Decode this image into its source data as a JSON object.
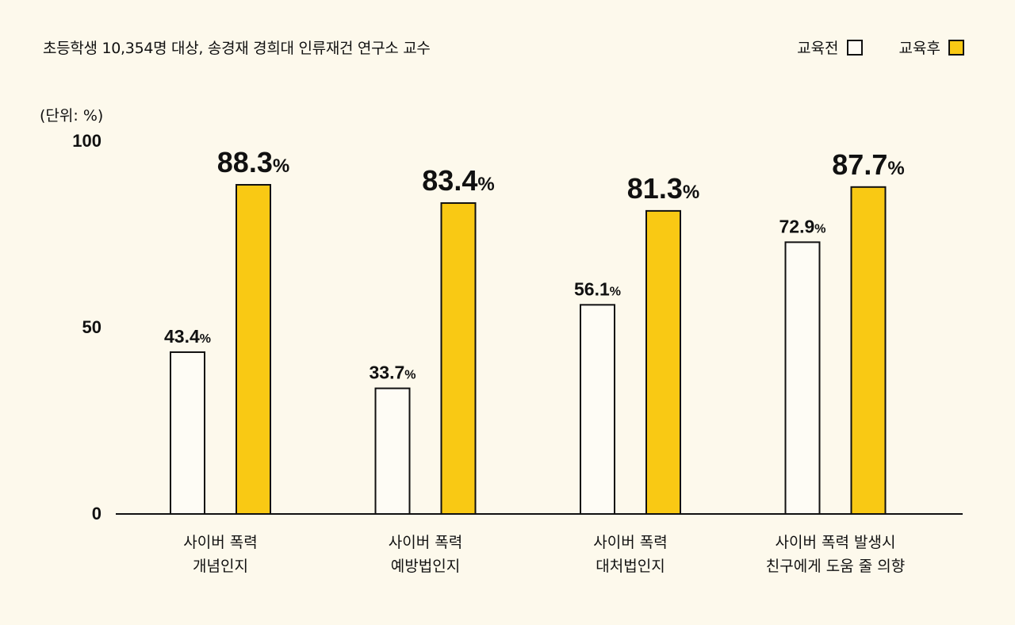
{
  "subtitle": "초등학생 10,354명 대상, 송경재 경희대 인류재건 연구소 교수",
  "unit_label": "(단위: %)",
  "colors": {
    "before": "#fefcf5",
    "after": "#f9c914",
    "stroke": "#111111",
    "background": "#fdf9ec"
  },
  "chart_data": {
    "type": "bar",
    "categories": [
      [
        "사이버 폭력",
        "개념인지"
      ],
      [
        "사이버 폭력",
        "예방법인지"
      ],
      [
        "사이버 폭력",
        "대처법인지"
      ],
      [
        "사이버 폭력 발생시",
        "친구에게 도움 줄 의향"
      ]
    ],
    "series": [
      {
        "name": "교육전",
        "values": [
          43.4,
          33.7,
          56.1,
          72.9
        ]
      },
      {
        "name": "교육후",
        "values": [
          88.3,
          83.4,
          81.3,
          87.7
        ]
      }
    ],
    "value_suffix": "%",
    "yticks": [
      "0",
      "50",
      "100"
    ],
    "ylim": [
      0,
      100
    ],
    "legend": "top-right",
    "grid": false
  }
}
